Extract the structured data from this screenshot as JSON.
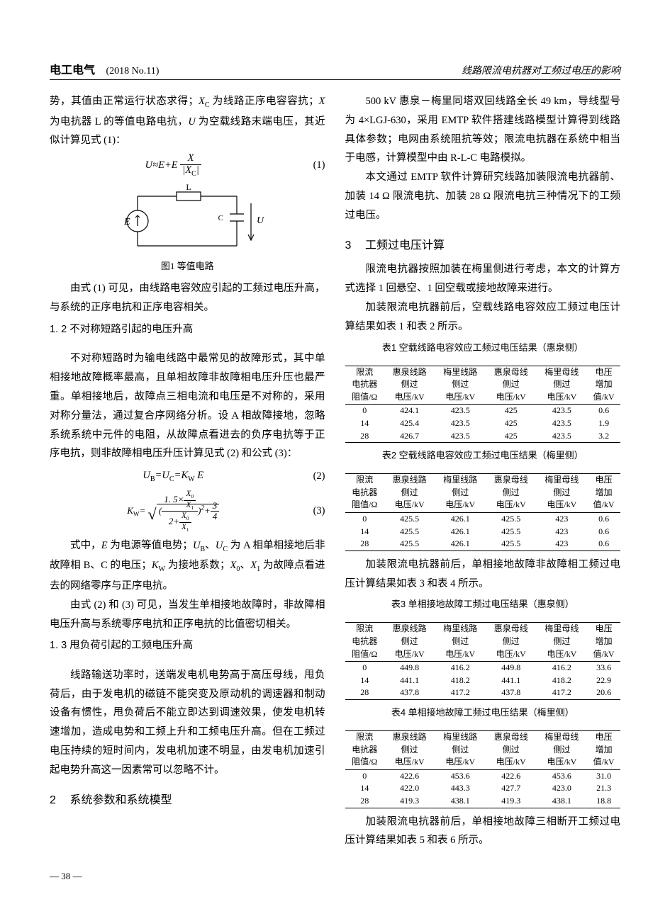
{
  "header": {
    "journal": "电工电气",
    "issue": "(2018 No.11)",
    "title_right": "线路限流电抗器对工频过电压的影响"
  },
  "page_number": "— 38 —",
  "left": {
    "p1": "势，其值由正常运行状态求得；X C 为线路正序电容容抗；X 为电抗器 L 的等值电路电抗，U 为空载线路末端电压，其近似计算见式 (1)：",
    "eq1_num": "(1)",
    "fig1_caption": "图1  等值电路",
    "p2": "由式 (1) 可见，由线路电容效应引起的工频过电压升高，与系统的正序电抗和正序电容相关。",
    "sub1_2": "1. 2 不对称短路引起的电压升高",
    "p3": "不对称短路时为输电线路中最常见的故障形式，其中单相接地故障概率最高，且单相故障非故障相电压升压也最严重。单相接地后，故障点三相电流和电压是不对称的，采用对称分量法，通过复合序网络分析。设 A 相故障接地，忽略系统系统中元件的电阻，从故障点看进去的负序电抗等于正序电抗，则非故障相电压升压计算见式 (2) 和公式 (3)：",
    "eq2_body": "U_B = U_C = K_W E",
    "eq2_num": "(2)",
    "eq3_num": "(3)",
    "p4": "式中，E 为电源等值电势；U_B、U_C 为 A 相单相接地后非故障相 B、C 的电压；K_W 为接地系数；X_0、X_1 为故障点看进去的网络零序与正序电抗。",
    "p5": "由式 (2) 和 (3) 可见，当发生单相接地故障时，非故障相电压升高与系统零序电抗和正序电抗的比值密切相关。",
    "sub1_3": "1. 3 甩负荷引起的工频电压升高",
    "p6": "线路输送功率时，送端发电机电势高于高压母线，甩负荷后，由于发电机的磁链不能突变及原动机的调速器和制动设备有惯性，甩负荷后不能立即达到调速效果，使发电机转速增加，造成电势和工频上升和工频电压升高。但在工频过电压持续的短时间内，发电机加速不明显，由发电机加速引起电势升高这一因素常可以忽略不计。",
    "sec2": "系统参数和系统模型",
    "sec2_num": "2"
  },
  "right": {
    "p1": "500 kV 惠泉－梅里同塔双回线路全长 49 km，导线型号为 4×LGJ-630，采用 EMTP 软件搭建线路模型计算得到线路具体参数；电网由系统阻抗等效；限流电抗器在系统中相当于电感，计算模型中由 R-L-C 电路模拟。",
    "p2": "本文通过 EMTP 软件计算研究线路加装限流电抗器前、加装 14 Ω 限流电抗、加装 28 Ω 限流电抗三种情况下的工频过电压。",
    "sec3_num": "3",
    "sec3": "工频过电压计算",
    "p3": "限流电抗器按照加装在梅里侧进行考虑，本文的计算方式选择 1 回悬空、1 回空载或接地故障来进行。",
    "p4": "加装限流电抗器前后，空载线路电容效应工频过电压计算结果如表 1 和表 2 所示。",
    "table1_caption": "表1  空载线路电容效应工频过电压结果（惠泉侧）",
    "table2_caption": "表2  空载线路电容效应工频过电压结果（梅里侧）",
    "p5": "加装限流电抗器前后，单相接地故障非故障相工频过电压计算结果如表 3 和表 4 所示。",
    "table3_caption": "表3  单相接地故障工频过电压结果（惠泉侧）",
    "table4_caption": "表4  单相接地故障工频过电压结果（梅里侧）",
    "p6": "加装限流电抗器前后，单相接地故障三相断开工频过电压计算结果如表 5 和表 6 所示。",
    "columns": {
      "c1a": "限流",
      "c1b": "电抗器",
      "c1c": "阻值/Ω",
      "c2a": "惠泉线路",
      "c2b": "侧过",
      "c2c": "电压/kV",
      "c3a": "梅里线路",
      "c3b": "侧过",
      "c3c": "电压/kV",
      "c4a": "惠泉母线",
      "c4b": "侧过",
      "c4c": "电压/kV",
      "c5a": "梅里母线",
      "c5b": "侧过",
      "c5c": "电压/kV",
      "c6a": "电压",
      "c6b": "增加",
      "c6c": "值/kV"
    },
    "table1": {
      "rows": [
        [
          "0",
          "424.1",
          "423.5",
          "425",
          "423.5",
          "0.6"
        ],
        [
          "14",
          "425.4",
          "423.5",
          "425",
          "423.5",
          "1.9"
        ],
        [
          "28",
          "426.7",
          "423.5",
          "425",
          "423.5",
          "3.2"
        ]
      ]
    },
    "table2": {
      "rows": [
        [
          "0",
          "425.5",
          "426.1",
          "425.5",
          "423",
          "0.6"
        ],
        [
          "14",
          "425.5",
          "426.1",
          "425.5",
          "423",
          "0.6"
        ],
        [
          "28",
          "425.5",
          "426.1",
          "425.5",
          "423",
          "0.6"
        ]
      ]
    },
    "table3": {
      "rows": [
        [
          "0",
          "449.8",
          "416.2",
          "449.8",
          "416.2",
          "33.6"
        ],
        [
          "14",
          "441.1",
          "418.2",
          "441.1",
          "418.2",
          "22.9"
        ],
        [
          "28",
          "437.8",
          "417.2",
          "437.8",
          "417.2",
          "20.6"
        ]
      ]
    },
    "table4": {
      "rows": [
        [
          "0",
          "422.6",
          "453.6",
          "422.6",
          "453.6",
          "31.0"
        ],
        [
          "14",
          "422.0",
          "443.3",
          "427.7",
          "423.0",
          "21.3"
        ],
        [
          "28",
          "419.3",
          "438.1",
          "419.3",
          "438.1",
          "18.8"
        ]
      ]
    }
  },
  "figure1": {
    "E_label": "E",
    "L_label": "L",
    "C_label": "C",
    "U_label": "U"
  }
}
